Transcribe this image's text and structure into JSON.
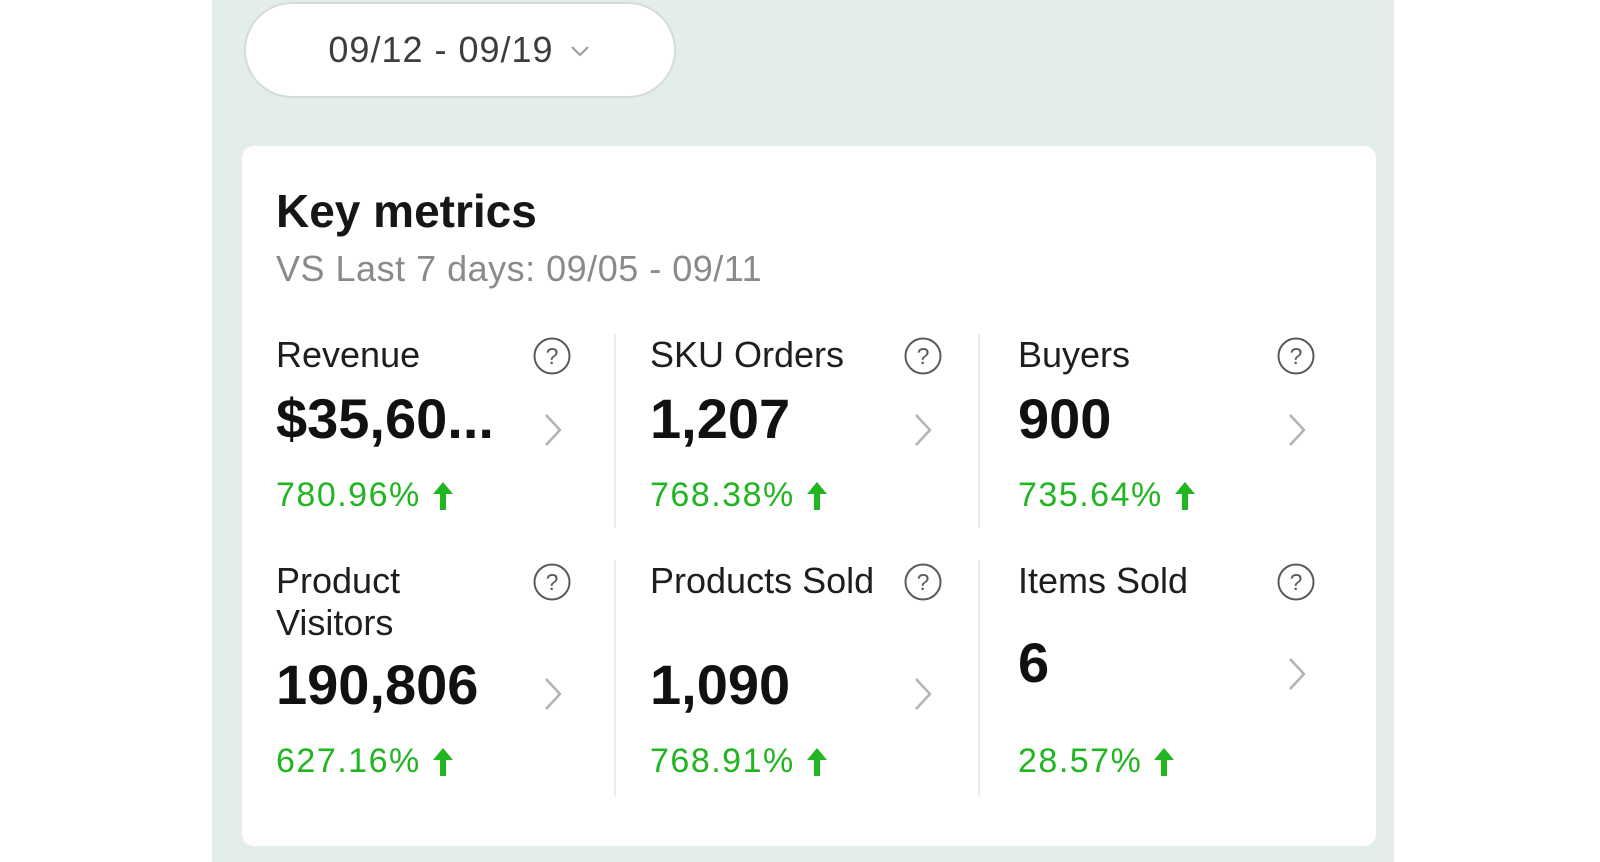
{
  "date_range": {
    "label": "09/12 - 09/19"
  },
  "card": {
    "title": "Key metrics",
    "subtitle": "VS Last 7 days: 09/05 - 09/11"
  },
  "metrics": [
    {
      "label": "Revenue",
      "value": "$35,60...",
      "change": "780.96%",
      "trend": "up"
    },
    {
      "label": "SKU Orders",
      "value": "1,207",
      "change": "768.38%",
      "trend": "up"
    },
    {
      "label": "Buyers",
      "value": "900",
      "change": "735.64%",
      "trend": "up"
    },
    {
      "label": "Product Visitors",
      "value": "190,806",
      "change": "627.16%",
      "trend": "up"
    },
    {
      "label": "Products Sold",
      "value": "1,090",
      "change": "768.91%",
      "trend": "up"
    },
    {
      "label": "Items Sold",
      "value": "6",
      "change": "28.57%",
      "trend": "up"
    }
  ],
  "colors": {
    "background": "#e3eeec",
    "positive_change": "#22b522",
    "card": "#ffffff"
  },
  "icons": {
    "date_dropdown": "chevron-down-icon",
    "info": "question-circle-icon",
    "detail": "chevron-right-icon",
    "trend_up": "arrow-up-icon"
  }
}
